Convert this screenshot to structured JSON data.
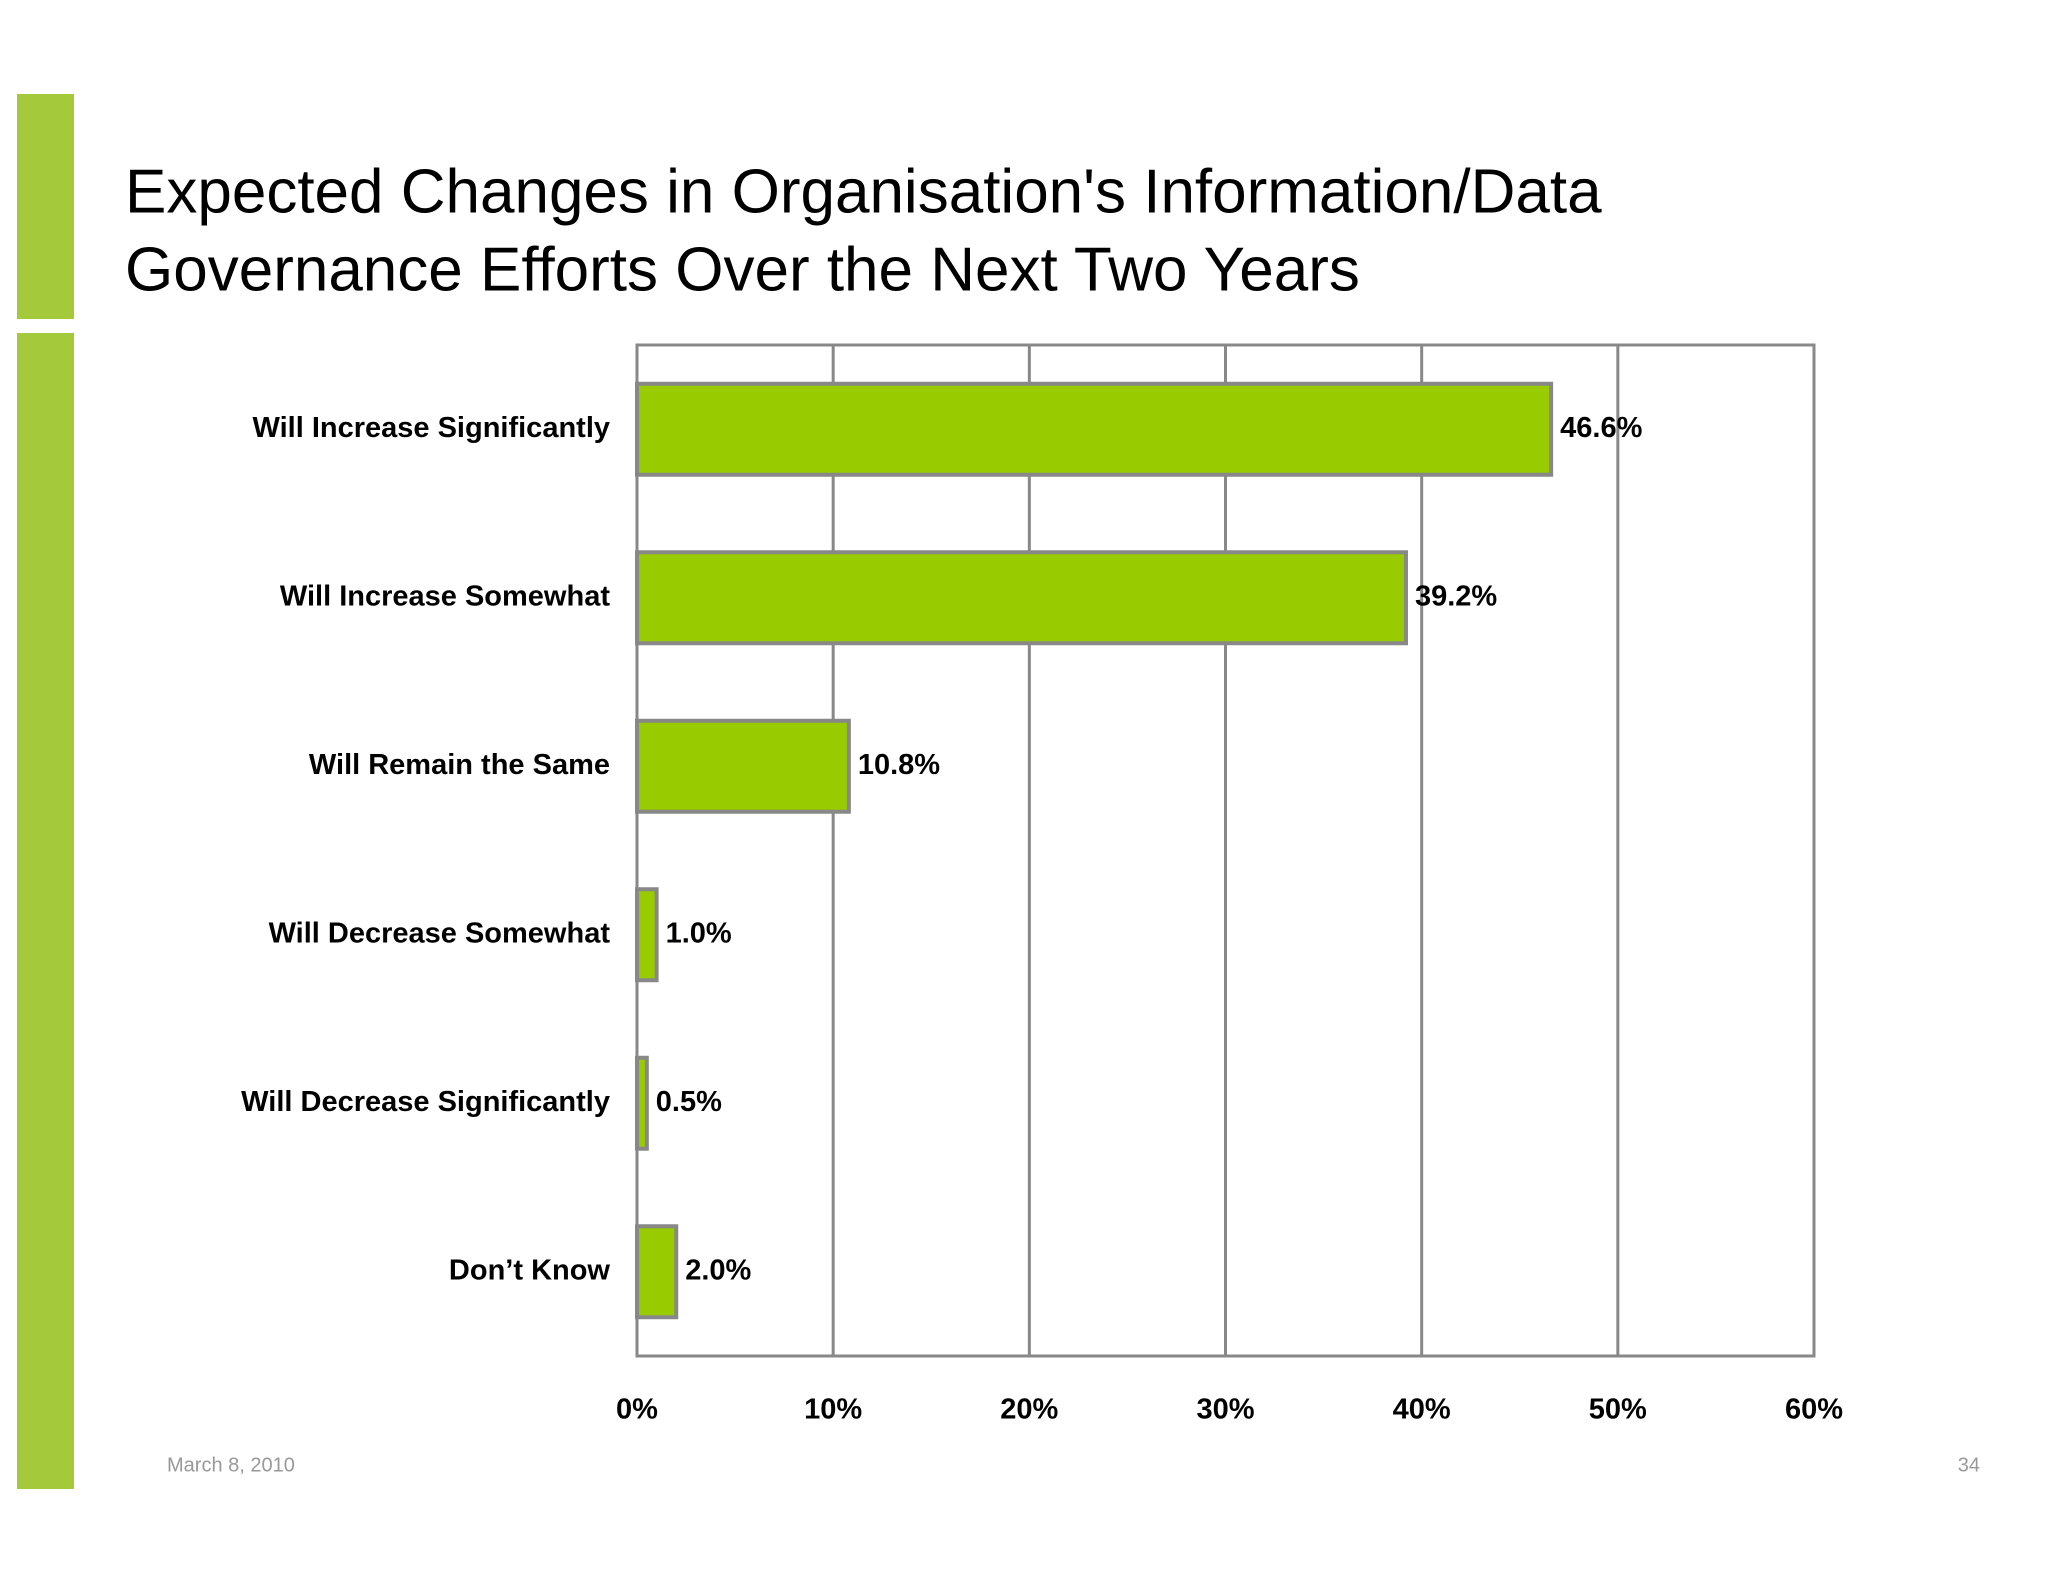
{
  "chart_data": {
    "type": "bar",
    "orientation": "horizontal",
    "title_lines": [
      "Expected Changes in Organisation's Information/Data",
      "Governance Efforts Over the Next Two Years"
    ],
    "categories": [
      "Will Increase Significantly",
      "Will Increase Somewhat",
      "Will Remain the Same",
      "Will Decrease Somewhat",
      "Will Decrease Significantly",
      "Don’t Know"
    ],
    "values": [
      46.6,
      39.2,
      10.8,
      1.0,
      0.5,
      2.0
    ],
    "value_labels": [
      "46.6%",
      "39.2%",
      "10.8%",
      "1.0%",
      "0.5%",
      "2.0%"
    ],
    "color": "#99cc00",
    "xlim": [
      0,
      60
    ],
    "xticks": [
      {
        "value": 0,
        "label": "0%"
      },
      {
        "value": 10,
        "label": "10%"
      },
      {
        "value": 20,
        "label": "20%"
      },
      {
        "value": 30,
        "label": "30%"
      },
      {
        "value": 40,
        "label": "40%"
      },
      {
        "value": 50,
        "label": "50%"
      },
      {
        "value": 60,
        "label": "60%"
      }
    ],
    "grid": true
  },
  "footer": {
    "date": "March 8, 2010",
    "page": "34"
  }
}
